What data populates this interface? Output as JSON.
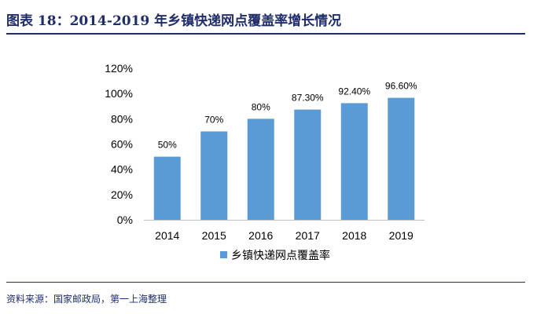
{
  "header": {
    "title": "图表 18：2014-2019 年乡镇快递网点覆盖率增长情况"
  },
  "footer": {
    "source": "资料来源：国家邮政局，第一上海整理"
  },
  "colors": {
    "bar": "#5b9bd5",
    "accent": "#1f2d6b",
    "axis": "#bfbfbf",
    "text": "#000000"
  },
  "chart_data": {
    "type": "bar",
    "categories": [
      "2014",
      "2015",
      "2016",
      "2017",
      "2018",
      "2019"
    ],
    "series": [
      {
        "name": "乡镇快递网点覆盖率",
        "values": [
          50,
          70,
          80,
          87.3,
          92.4,
          96.6
        ],
        "labels": [
          "50%",
          "70%",
          "80%",
          "87.30%",
          "92.40%",
          "96.60%"
        ]
      }
    ],
    "yticks": [
      0,
      20,
      40,
      60,
      80,
      100,
      120
    ],
    "ytick_labels": [
      "0%",
      "20%",
      "40%",
      "60%",
      "80%",
      "100%",
      "120%"
    ],
    "ylim": [
      0,
      120
    ],
    "grid": false,
    "legend": "bottom",
    "title": "",
    "xlabel": "",
    "ylabel": ""
  }
}
